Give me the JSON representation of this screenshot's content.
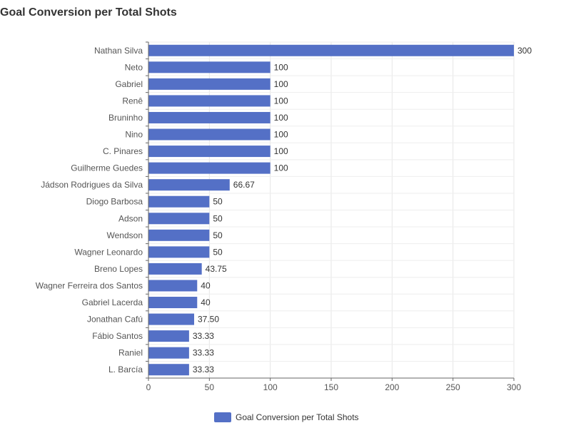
{
  "chart_data": {
    "type": "bar",
    "orientation": "horizontal",
    "title": "Goal Conversion per Total Shots",
    "xlabel": "",
    "ylabel": "",
    "categories": [
      "Nathan Silva",
      "Neto",
      "Gabriel",
      "Renê",
      "Bruninho",
      "Nino",
      "C. Pinares",
      "Guilherme Guedes",
      "Jádson Rodrigues da Silva",
      "Diogo Barbosa",
      "Adson",
      "Wendson",
      "Wagner Leonardo",
      "Breno Lopes",
      "Wagner Ferreira dos Santos",
      "Gabriel Lacerda",
      "Jonathan Cafú",
      "Fábio Santos",
      "Raniel",
      "L. Barcía"
    ],
    "series": [
      {
        "name": "Goal Conversion per Total Shots",
        "values": [
          300,
          100,
          100,
          100,
          100,
          100,
          100,
          100,
          66.67,
          50,
          50,
          50,
          50,
          43.75,
          40,
          40,
          37.5,
          33.33,
          33.33,
          33.33
        ],
        "value_labels": [
          "300",
          "100",
          "100",
          "100",
          "100",
          "100",
          "100",
          "100",
          "66.67",
          "50",
          "50",
          "50",
          "50",
          "43.75",
          "40",
          "40",
          "37.50",
          "33.33",
          "33.33",
          "33.33"
        ],
        "color": "#5470c6"
      }
    ],
    "x_ticks": [
      0,
      50,
      100,
      150,
      200,
      250,
      300
    ],
    "xlim": [
      0,
      300
    ],
    "grid": true,
    "legend": "bottom-center"
  }
}
